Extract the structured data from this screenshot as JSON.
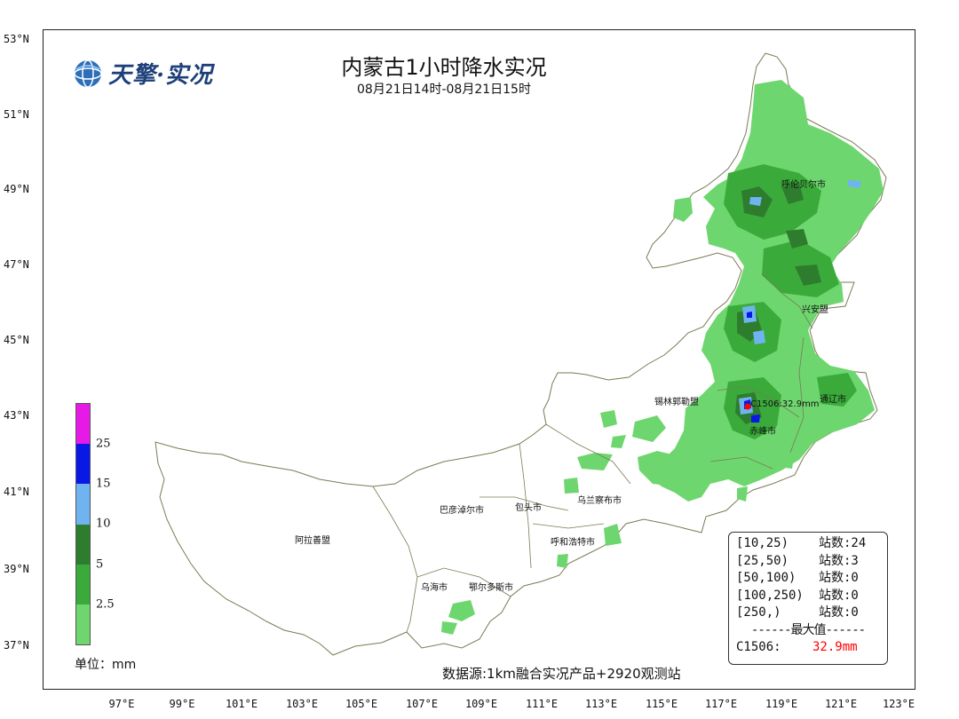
{
  "title": "内蒙古1小时降水实况",
  "subtitle": "08月21日14时-08月21日15时",
  "logo": {
    "text": "天擎·实况",
    "icon": "globe-icon"
  },
  "latitude_labels": [
    "53°N",
    "51°N",
    "49°N",
    "47°N",
    "45°N",
    "43°N",
    "41°N",
    "39°N",
    "37°N"
  ],
  "longitude_labels": [
    "97°E",
    "99°E",
    "101°E",
    "103°E",
    "105°E",
    "107°E",
    "109°E",
    "111°E",
    "113°E",
    "115°E",
    "117°E",
    "119°E",
    "121°E",
    "123°E"
  ],
  "cities": {
    "hulunbuir": "呼伦贝尔市",
    "xinganmeng": "兴安盟",
    "xilingol": "锡林郭勒盟",
    "tongliao": "通辽市",
    "chifeng": "赤峰市",
    "wulanchabu": "乌兰察布市",
    "baotou": "包头市",
    "bayannur": "巴彦淖尔市",
    "hohhot": "呼和浩特市",
    "alxa": "阿拉善盟",
    "wuhai": "乌海市",
    "ordos": "鄂尔多斯市"
  },
  "max_station_marker": "C1506:32.9mm",
  "legend": {
    "unit": "单位：mm",
    "ticks": [
      "2.5",
      "5",
      "10",
      "15",
      "25"
    ],
    "colors": [
      "#6ed66e",
      "#3aab3a",
      "#2e7d2e",
      "#6fb4f0",
      "#0a18e6",
      "#e619e6"
    ]
  },
  "stats": {
    "rows": [
      {
        "range": "[10,25)",
        "count": "站数:24"
      },
      {
        "range": "[25,50)",
        "count": "站数:3"
      },
      {
        "range": "[50,100)",
        "count": "站数:0"
      },
      {
        "range": "[100,250)",
        "count": "站数:0"
      },
      {
        "range": "[250,)",
        "count": "站数:0"
      }
    ],
    "max_header": "------最大值------",
    "max_station": "C1506:",
    "max_value": "32.9mm"
  },
  "source_note": "数据源:1km融合实况产品+2920观测站"
}
